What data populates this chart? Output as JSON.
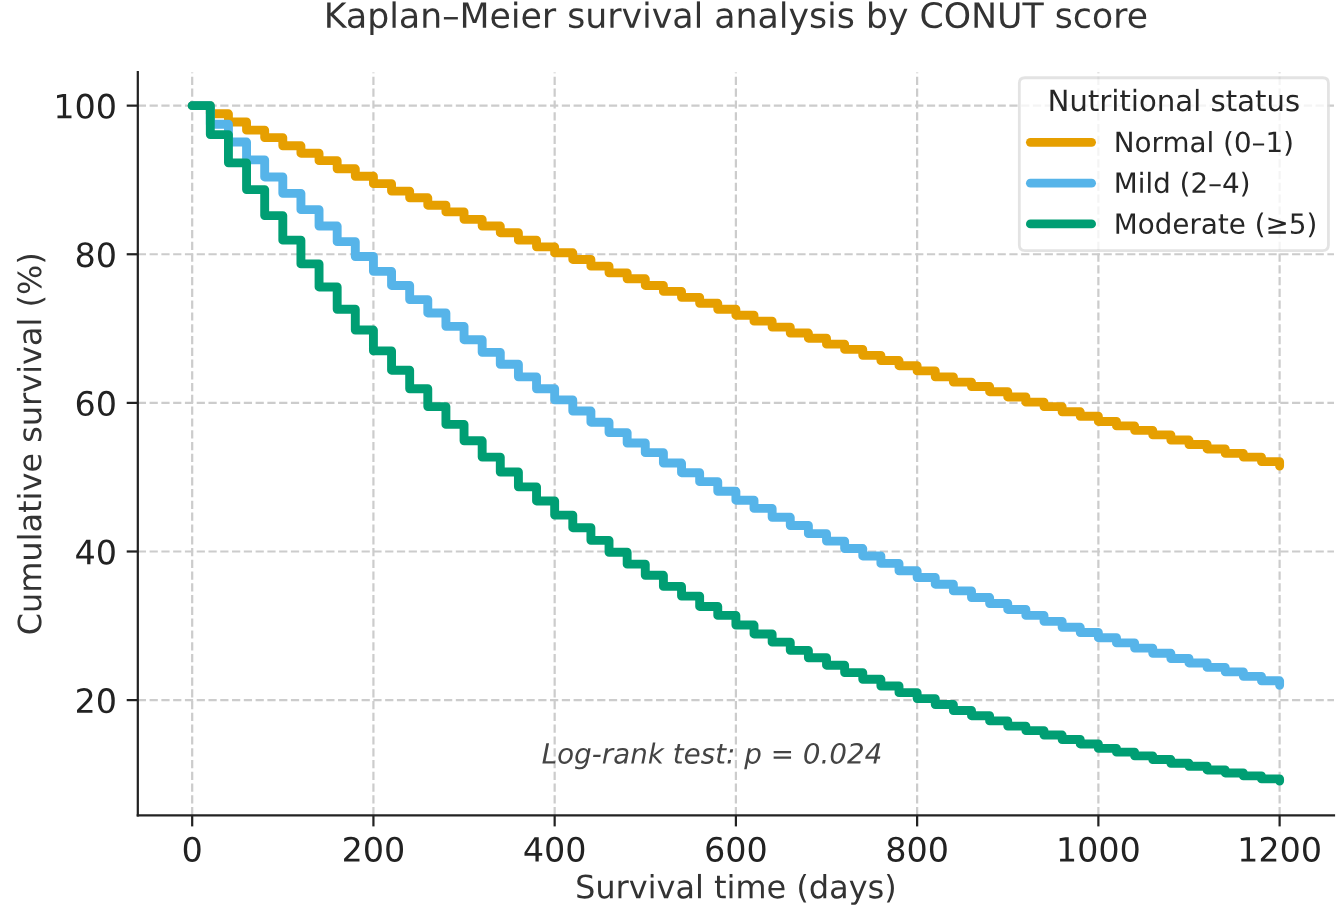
{
  "chart_data": {
    "type": "step",
    "title": "Kaplan–Meier survival analysis by CONUT score",
    "xlabel": "Survival time (days)",
    "ylabel": "Cumulative survival (%)",
    "legend_title": "Nutritional status",
    "legend": "top right",
    "grid": true,
    "line_style": "solid",
    "x": [
      0,
      20,
      40,
      60,
      80,
      100,
      120,
      140,
      160,
      180,
      200,
      220,
      240,
      260,
      280,
      300,
      320,
      340,
      360,
      380,
      400,
      420,
      440,
      460,
      480,
      500,
      520,
      540,
      560,
      580,
      600,
      620,
      640,
      660,
      680,
      700,
      720,
      740,
      760,
      780,
      800,
      820,
      840,
      860,
      880,
      900,
      920,
      940,
      960,
      980,
      1000,
      1020,
      1040,
      1060,
      1080,
      1100,
      1120,
      1140,
      1160,
      1180,
      1200
    ],
    "series": [
      {
        "name": "Normal (0–1)",
        "color": "#e69f00",
        "values": [
          100,
          98.9,
          97.8,
          96.7,
          95.7,
          94.6,
          93.6,
          92.6,
          91.5,
          90.5,
          89.5,
          88.5,
          87.6,
          86.6,
          85.7,
          84.7,
          83.8,
          82.9,
          81.9,
          81.0,
          80.2,
          79.3,
          78.4,
          77.5,
          76.7,
          75.8,
          75.0,
          74.2,
          73.4,
          72.6,
          71.8,
          71.0,
          70.2,
          69.4,
          68.7,
          67.9,
          67.2,
          66.4,
          65.7,
          65.0,
          64.3,
          63.5,
          62.8,
          62.2,
          61.5,
          60.8,
          60.1,
          59.5,
          58.8,
          58.2,
          57.5,
          56.9,
          56.3,
          55.7,
          55.0,
          54.4,
          53.8,
          53.2,
          52.7,
          52.1,
          51.5
        ]
      },
      {
        "name": "Mild (2–4)",
        "color": "#56b4e9",
        "values": [
          100,
          97.5,
          95.1,
          92.7,
          90.4,
          88.2,
          86.0,
          83.8,
          81.7,
          79.7,
          77.7,
          75.8,
          73.9,
          72.1,
          70.3,
          68.5,
          66.8,
          65.2,
          63.5,
          61.9,
          60.4,
          58.9,
          57.4,
          56.0,
          54.6,
          53.3,
          51.9,
          50.6,
          49.4,
          48.1,
          46.9,
          45.8,
          44.6,
          43.5,
          42.4,
          41.4,
          40.4,
          39.4,
          38.4,
          37.4,
          36.5,
          35.6,
          34.7,
          33.8,
          33.0,
          32.2,
          31.4,
          30.6,
          29.8,
          29.1,
          28.4,
          27.7,
          27.0,
          26.3,
          25.6,
          25.0,
          24.4,
          23.8,
          23.2,
          22.6,
          22.0
        ]
      },
      {
        "name": "Moderate (≥5)",
        "color": "#009e73",
        "values": [
          100,
          96.1,
          92.3,
          88.7,
          85.2,
          81.9,
          78.7,
          75.6,
          72.6,
          69.8,
          67.0,
          64.4,
          61.9,
          59.5,
          57.1,
          54.9,
          52.7,
          50.7,
          48.7,
          46.8,
          44.9,
          43.2,
          41.5,
          39.9,
          38.3,
          36.8,
          35.3,
          34.0,
          32.6,
          31.4,
          30.1,
          28.9,
          27.8,
          26.7,
          25.7,
          24.7,
          23.7,
          22.8,
          21.9,
          21.0,
          20.2,
          19.4,
          18.6,
          17.9,
          17.2,
          16.5,
          15.9,
          15.3,
          14.7,
          14.1,
          13.5,
          13.0,
          12.5,
          12.0,
          11.5,
          11.1,
          10.6,
          10.2,
          9.8,
          9.4,
          9.1
        ]
      }
    ],
    "xlim": [
      -60,
      1260
    ],
    "xticks": [
      0,
      200,
      400,
      600,
      800,
      1000,
      1200
    ],
    "ylim": [
      4.5,
      104.5
    ],
    "yticks": [
      20,
      40,
      60,
      80,
      100
    ],
    "annotations": [
      "Log-rank test: p = 0.024"
    ]
  }
}
